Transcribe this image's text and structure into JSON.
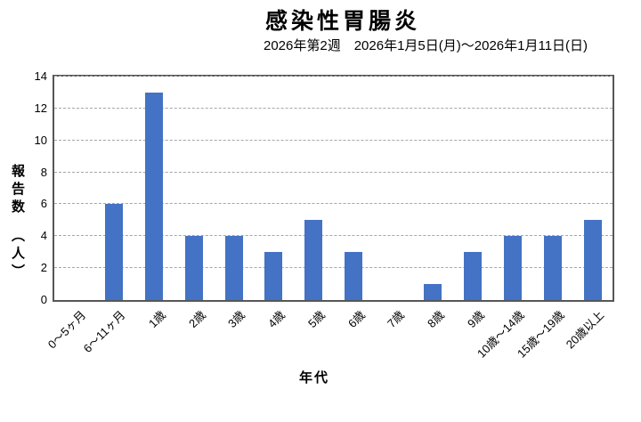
{
  "chart_data": {
    "type": "bar",
    "title": "感染性胃腸炎",
    "subtitle": "2026年第2週　2026年1月5日(月)～2026年1月11日(日)",
    "categories": [
      "0～5ヶ月",
      "6～11ヶ月",
      "1歳",
      "2歳",
      "3歳",
      "4歳",
      "5歳",
      "6歳",
      "7歳",
      "8歳",
      "9歳",
      "10歳～14歳",
      "15歳～19歳",
      "20歳以上"
    ],
    "values": [
      0,
      6,
      13,
      4,
      4,
      3,
      5,
      3,
      0,
      1,
      3,
      4,
      4,
      5
    ],
    "xlabel": "年代",
    "ylabel": "報告数　（人）",
    "ylim": [
      0,
      14
    ],
    "yticks": [
      0,
      2,
      4,
      6,
      8,
      10,
      12,
      14
    ],
    "grid": "horizontal-dashed",
    "legend": "none",
    "bar_color": "#4472C4",
    "grid_color": "#a6a6a6",
    "plot_border_color": "#565656"
  }
}
